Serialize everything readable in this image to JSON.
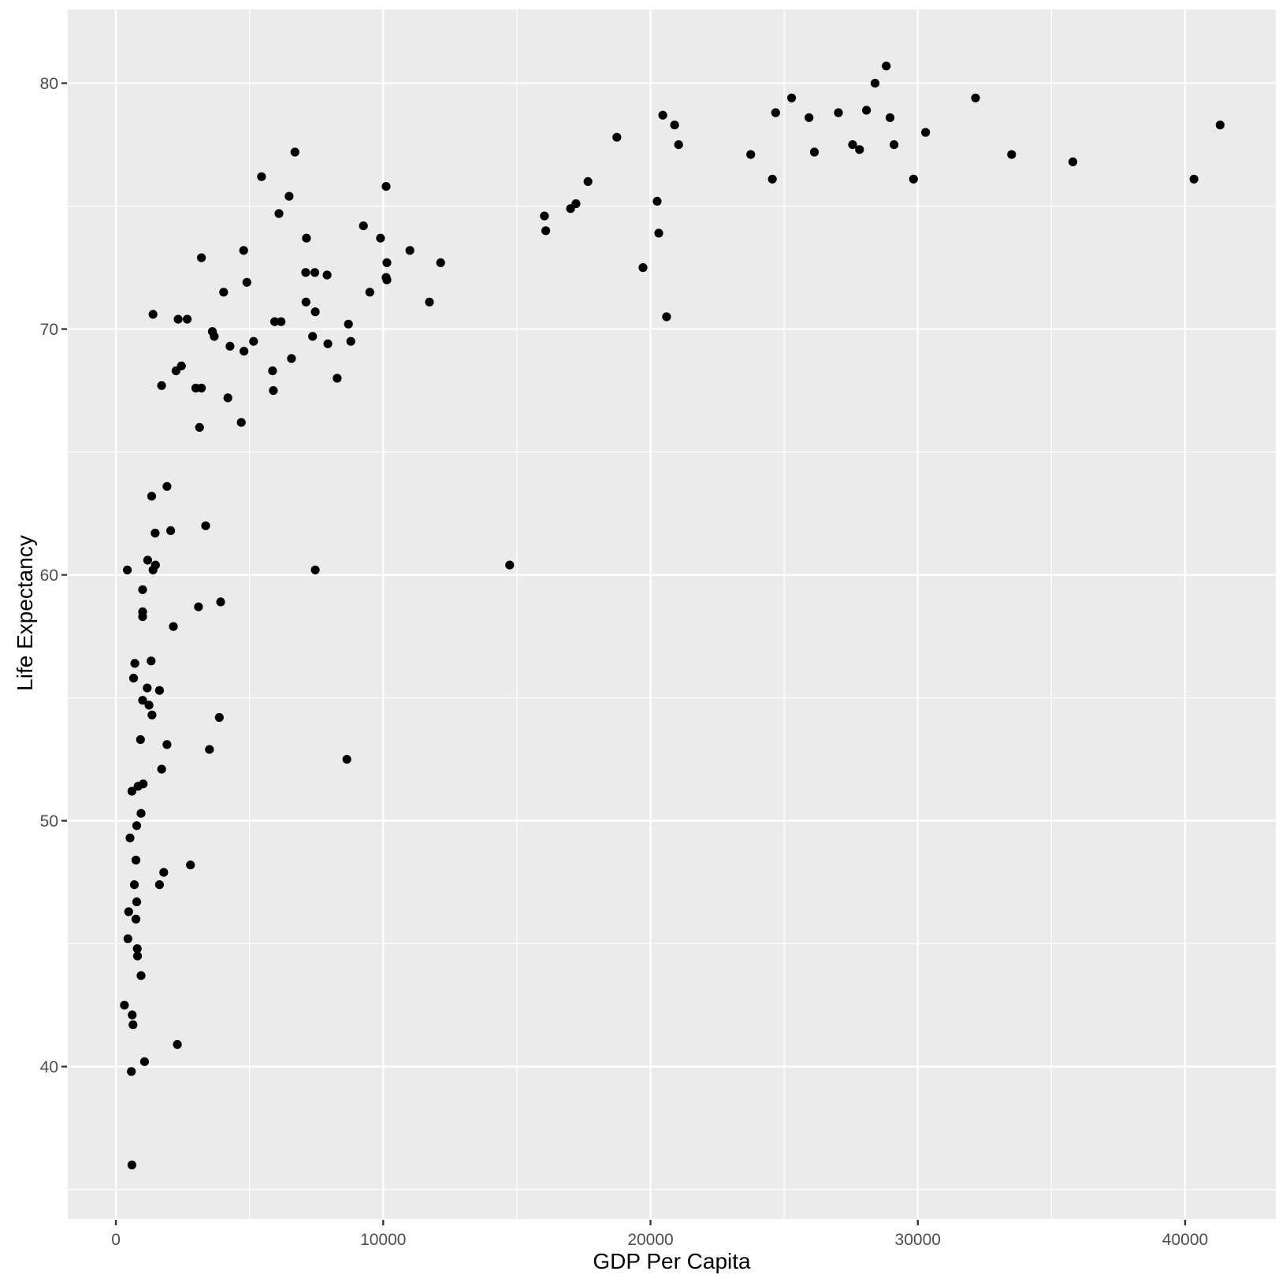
{
  "figure": {
    "background": "#FFFFFF",
    "panel_background": "#EBEBEB",
    "grid_color": "#FFFFFF",
    "point_color": "#000000",
    "tick_mark_color": "#333333",
    "tick_label_color": "#4D4D4D",
    "axis_title_color": "#000000"
  },
  "chart_data": {
    "type": "scatter",
    "title": "",
    "xlabel": "GDP Per Capita",
    "ylabel": "Life Expectancy",
    "legend": false,
    "grid": true,
    "xlim": [
      -1800,
      43390
    ],
    "ylim": [
      33.8,
      83.0
    ],
    "x_ticks": [
      0,
      10000,
      20000,
      30000,
      40000
    ],
    "x_tick_labels": [
      "0",
      "10000",
      "20000",
      "30000",
      "40000"
    ],
    "x_minor_ticks": [
      5000,
      15000,
      25000,
      35000
    ],
    "y_ticks": [
      40,
      50,
      60,
      70,
      80
    ],
    "y_tick_labels": [
      "40",
      "50",
      "60",
      "70",
      "80"
    ],
    "y_minor_ticks": [
      35,
      45,
      55,
      65,
      75
    ],
    "points": [
      [
        6700,
        77.2
      ],
      [
        5450,
        76.2
      ],
      [
        6480,
        75.4
      ],
      [
        6100,
        74.7
      ],
      [
        9260,
        74.2
      ],
      [
        7130,
        73.7
      ],
      [
        4780,
        73.2
      ],
      [
        3200,
        72.9
      ],
      [
        7100,
        72.3
      ],
      [
        7440,
        72.3
      ],
      [
        7900,
        72.2
      ],
      [
        4900,
        71.9
      ],
      [
        4030,
        71.5
      ],
      [
        9500,
        71.5
      ],
      [
        7110,
        71.1
      ],
      [
        1390,
        70.6
      ],
      [
        7460,
        70.7
      ],
      [
        2330,
        70.4
      ],
      [
        2670,
        70.4
      ],
      [
        5940,
        70.3
      ],
      [
        6180,
        70.3
      ],
      [
        8700,
        70.2
      ],
      [
        3610,
        69.9
      ],
      [
        3680,
        69.7
      ],
      [
        7360,
        69.7
      ],
      [
        8790,
        69.5
      ],
      [
        5150,
        69.5
      ],
      [
        7930,
        69.4
      ],
      [
        4270,
        69.3
      ],
      [
        4790,
        69.1
      ],
      [
        6570,
        68.8
      ],
      [
        2450,
        68.5
      ],
      [
        2250,
        68.3
      ],
      [
        5860,
        68.3
      ],
      [
        8280,
        68.0
      ],
      [
        1710,
        67.7
      ],
      [
        2990,
        67.6
      ],
      [
        3200,
        67.6
      ],
      [
        5890,
        67.5
      ],
      [
        4190,
        67.2
      ],
      [
        4690,
        66.2
      ],
      [
        3130,
        66.0
      ],
      [
        1910,
        63.6
      ],
      [
        1340,
        63.2
      ],
      [
        3360,
        62.0
      ],
      [
        2050,
        61.8
      ],
      [
        1470,
        61.7
      ],
      [
        1190,
        60.6
      ],
      [
        1480,
        60.4
      ],
      [
        14730,
        60.4
      ],
      [
        430,
        60.2
      ],
      [
        1390,
        60.2
      ],
      [
        7460,
        60.2
      ],
      [
        1000,
        59.4
      ],
      [
        3920,
        58.9
      ],
      [
        3090,
        58.7
      ],
      [
        1000,
        58.5
      ],
      [
        1000,
        58.3
      ],
      [
        2150,
        57.9
      ],
      [
        710,
        56.4
      ],
      [
        1320,
        56.5
      ],
      [
        660,
        55.8
      ],
      [
        1170,
        55.4
      ],
      [
        1630,
        55.3
      ],
      [
        1000,
        54.9
      ],
      [
        1240,
        54.7
      ],
      [
        1350,
        54.3
      ],
      [
        3870,
        54.2
      ],
      [
        920,
        53.3
      ],
      [
        1910,
        53.1
      ],
      [
        3500,
        52.9
      ],
      [
        8640,
        52.5
      ],
      [
        1710,
        52.1
      ],
      [
        1020,
        51.5
      ],
      [
        830,
        51.4
      ],
      [
        600,
        51.2
      ],
      [
        940,
        50.3
      ],
      [
        780,
        49.8
      ],
      [
        530,
        49.3
      ],
      [
        750,
        48.4
      ],
      [
        2790,
        48.2
      ],
      [
        1790,
        47.9
      ],
      [
        690,
        47.4
      ],
      [
        1630,
        47.4
      ],
      [
        780,
        46.7
      ],
      [
        480,
        46.3
      ],
      [
        750,
        46.0
      ],
      [
        450,
        45.2
      ],
      [
        800,
        44.8
      ],
      [
        810,
        44.5
      ],
      [
        940,
        43.7
      ],
      [
        320,
        42.5
      ],
      [
        610,
        42.1
      ],
      [
        640,
        41.7
      ],
      [
        2300,
        40.9
      ],
      [
        1070,
        40.2
      ],
      [
        580,
        39.8
      ],
      [
        600,
        36.0
      ],
      [
        10110,
        75.8
      ],
      [
        9900,
        73.7
      ],
      [
        11000,
        73.2
      ],
      [
        10140,
        72.7
      ],
      [
        12150,
        72.7
      ],
      [
        10110,
        72.1
      ],
      [
        10140,
        72.0
      ],
      [
        11730,
        71.1
      ],
      [
        16030,
        74.6
      ],
      [
        16080,
        74.0
      ],
      [
        17010,
        74.9
      ],
      [
        17210,
        75.1
      ],
      [
        17660,
        76.0
      ],
      [
        18740,
        77.8
      ],
      [
        19720,
        72.5
      ],
      [
        20250,
        75.2
      ],
      [
        20310,
        73.9
      ],
      [
        20460,
        78.7
      ],
      [
        20600,
        70.5
      ],
      [
        20900,
        78.3
      ],
      [
        21050,
        77.5
      ],
      [
        23750,
        77.1
      ],
      [
        24560,
        76.1
      ],
      [
        24680,
        78.8
      ],
      [
        25280,
        79.4
      ],
      [
        25930,
        78.6
      ],
      [
        26130,
        77.2
      ],
      [
        27030,
        78.8
      ],
      [
        27560,
        77.5
      ],
      [
        27820,
        77.3
      ],
      [
        28080,
        78.9
      ],
      [
        28400,
        80.0
      ],
      [
        28820,
        80.7
      ],
      [
        28960,
        78.6
      ],
      [
        29110,
        77.5
      ],
      [
        29840,
        76.1
      ],
      [
        30290,
        78.0
      ],
      [
        32160,
        79.4
      ],
      [
        33510,
        77.1
      ],
      [
        35800,
        76.8
      ],
      [
        40330,
        76.1
      ],
      [
        41310,
        78.3
      ]
    ]
  }
}
